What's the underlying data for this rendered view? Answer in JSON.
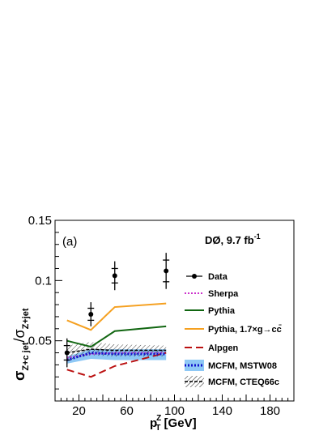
{
  "chart_data": {
    "type": "line",
    "panel_label": "(a)",
    "experiment_label": "DØ, 9.7 fb",
    "experiment_label_sup": "-1",
    "xlabel_main": "p",
    "xlabel_sup": "Z",
    "xlabel_sub": "T",
    "xlabel_unit": " [GeV]",
    "ylabel_main": "σ",
    "ylabel_num_sub": "Z+c jet",
    "ylabel_sep": "/σ",
    "ylabel_den_sub": "Z+jet",
    "xlim": [
      0,
      200
    ],
    "ylim": [
      0,
      0.15
    ],
    "x_ticks": [
      20,
      60,
      100,
      140,
      180
    ],
    "x_tick_labels": [
      "20",
      "60",
      "100",
      "140",
      "180"
    ],
    "y_ticks": [
      0.05,
      0.1,
      0.15
    ],
    "y_tick_labels": [
      "0.05",
      "0.1",
      "0.15"
    ],
    "x_edges": [
      10,
      30,
      50,
      93
    ],
    "data": {
      "name": "Data",
      "x": [
        10,
        30,
        50,
        93
      ],
      "y": [
        0.04,
        0.072,
        0.104,
        0.108
      ],
      "yerr": [
        0.012,
        0.01,
        0.012,
        0.015
      ],
      "yerr_stat": [
        0.006,
        0.005,
        0.006,
        0.009
      ]
    },
    "series": [
      {
        "name": "Sherpa",
        "style": "dotted",
        "color": "#cc33cc",
        "x": [
          10,
          30,
          50,
          93
        ],
        "y": [
          0.036,
          0.039,
          0.04,
          0.04
        ]
      },
      {
        "name": "Pythia",
        "style": "solid",
        "color": "#116611",
        "x": [
          10,
          30,
          50,
          93
        ],
        "y": [
          0.05,
          0.045,
          0.058,
          0.062
        ]
      },
      {
        "name": "Pythia, 1.7×g→cc̄",
        "style": "solid",
        "color": "#f5a020",
        "x": [
          10,
          30,
          50,
          93
        ],
        "y": [
          0.067,
          0.059,
          0.078,
          0.081
        ]
      },
      {
        "name": "Alpgen",
        "style": "dashed",
        "color": "#bb1111",
        "x": [
          10,
          30,
          50,
          93
        ],
        "y": [
          0.026,
          0.02,
          0.029,
          0.04
        ]
      },
      {
        "name": "MCFM, MSTW08",
        "style": "dotted-band",
        "color": "#1111cc",
        "band_color": "#8ec8f5",
        "x": [
          10,
          30,
          50,
          93
        ],
        "y": [
          0.034,
          0.04,
          0.039,
          0.039
        ],
        "band_low": [
          0.031,
          0.035,
          0.034,
          0.034
        ],
        "band_high": [
          0.037,
          0.043,
          0.043,
          0.043
        ]
      },
      {
        "name": "MCFM, CTEQ66c",
        "style": "hatched-band",
        "color": "#000000",
        "x": [
          10,
          30,
          50,
          93
        ],
        "y": [
          0.04,
          0.043,
          0.042,
          0.042
        ],
        "band_low": [
          0.034,
          0.038,
          0.037,
          0.037
        ],
        "band_high": [
          0.046,
          0.049,
          0.047,
          0.046
        ]
      }
    ],
    "legend_position": "right"
  }
}
